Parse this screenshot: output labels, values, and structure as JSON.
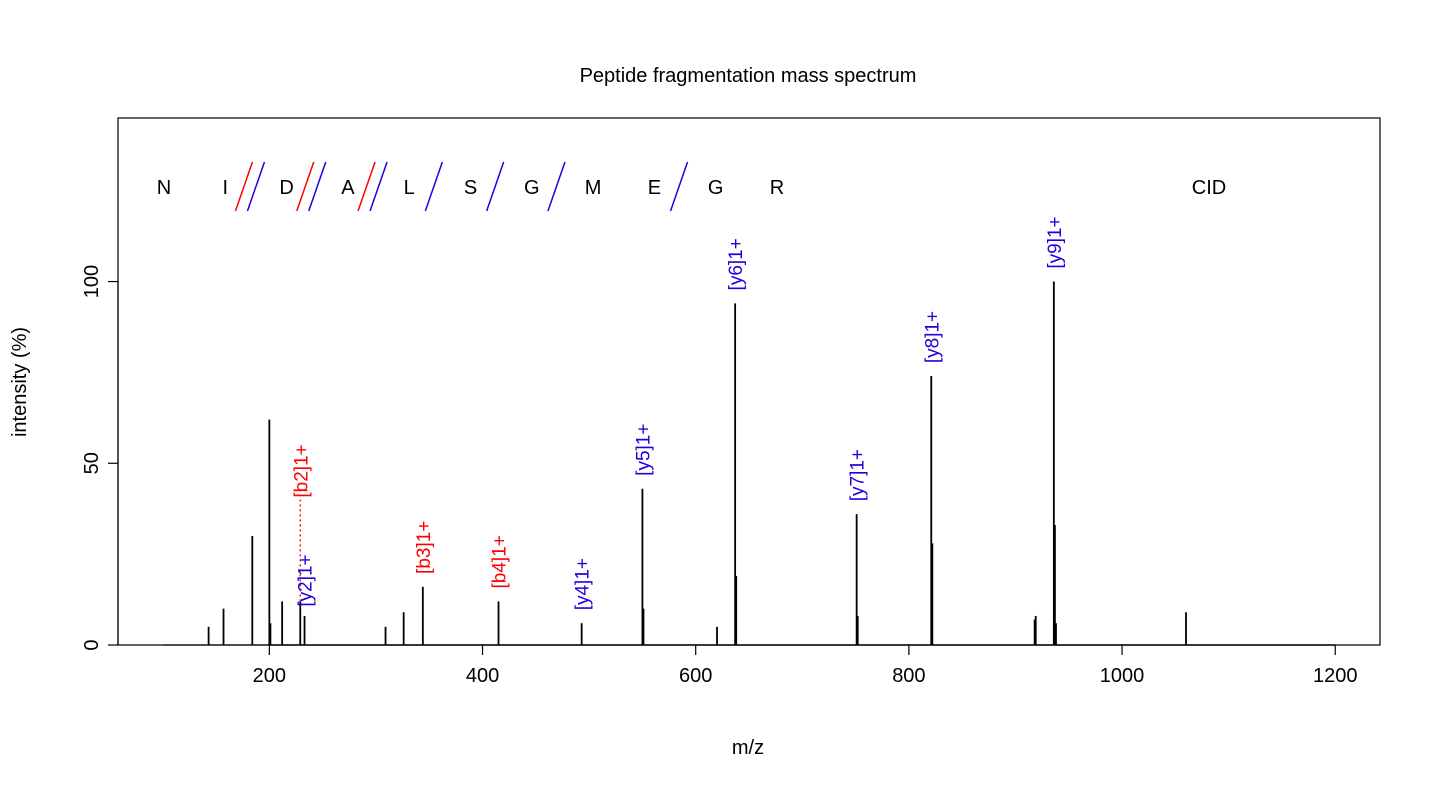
{
  "chart_data": {
    "type": "bar",
    "title": "Peptide fragmentation mass spectrum",
    "xlabel": "m/z",
    "ylabel": "intensity (%)",
    "xlim": [
      58,
      1242
    ],
    "ylim": [
      0,
      145
    ],
    "xticks": [
      200,
      400,
      600,
      800,
      1000,
      1200
    ],
    "yticks": [
      0,
      50,
      100
    ],
    "grid": false,
    "legend": "none",
    "method_label": "CID",
    "sequence": [
      "N",
      "I",
      "D",
      "A",
      "L",
      "S",
      "G",
      "M",
      "E",
      "G",
      "R"
    ],
    "cleavages": [
      {
        "after_residue": 2,
        "b": true,
        "y": true
      },
      {
        "after_residue": 3,
        "b": true,
        "y": true
      },
      {
        "after_residue": 4,
        "b": true,
        "y": true
      },
      {
        "after_residue": 5,
        "b": false,
        "y": true
      },
      {
        "after_residue": 6,
        "b": false,
        "y": true
      },
      {
        "after_residue": 7,
        "b": false,
        "y": true
      },
      {
        "after_residue": 9,
        "b": false,
        "y": true
      }
    ],
    "colors": {
      "b_ion": "#ff0000",
      "y_ion": "#2200dd",
      "peak": "#000000"
    },
    "peaks": [
      {
        "mz": 143,
        "intensity": 5
      },
      {
        "mz": 157,
        "intensity": 10
      },
      {
        "mz": 184,
        "intensity": 30
      },
      {
        "mz": 200,
        "intensity": 62
      },
      {
        "mz": 201,
        "intensity": 6
      },
      {
        "mz": 212,
        "intensity": 12
      },
      {
        "mz": 229,
        "intensity": 12
      },
      {
        "mz": 233,
        "intensity": 8
      },
      {
        "mz": 309,
        "intensity": 5
      },
      {
        "mz": 326,
        "intensity": 9
      },
      {
        "mz": 344,
        "intensity": 16
      },
      {
        "mz": 415,
        "intensity": 12
      },
      {
        "mz": 493,
        "intensity": 6
      },
      {
        "mz": 550,
        "intensity": 43
      },
      {
        "mz": 551,
        "intensity": 10
      },
      {
        "mz": 620,
        "intensity": 5
      },
      {
        "mz": 637,
        "intensity": 94
      },
      {
        "mz": 638,
        "intensity": 19
      },
      {
        "mz": 751,
        "intensity": 36
      },
      {
        "mz": 752,
        "intensity": 8
      },
      {
        "mz": 821,
        "intensity": 74
      },
      {
        "mz": 822,
        "intensity": 28
      },
      {
        "mz": 918,
        "intensity": 7
      },
      {
        "mz": 919,
        "intensity": 8
      },
      {
        "mz": 936,
        "intensity": 100
      },
      {
        "mz": 937,
        "intensity": 33
      },
      {
        "mz": 938,
        "intensity": 6
      },
      {
        "mz": 1060,
        "intensity": 9
      }
    ],
    "annotations": [
      {
        "label": "[b2]1+",
        "ion": "b",
        "mz": 229,
        "intensity": 12,
        "label_at": 40,
        "dotted": true
      },
      {
        "label": "[y2]1+",
        "ion": "y",
        "mz": 233,
        "intensity": 8,
        "label_at": 10,
        "dotted": false
      },
      {
        "label": "[b3]1+",
        "ion": "b",
        "mz": 344,
        "intensity": 16,
        "label_at": 19,
        "dotted": false
      },
      {
        "label": "[b4]1+",
        "ion": "b",
        "mz": 415,
        "intensity": 12,
        "label_at": 15,
        "dotted": false
      },
      {
        "label": "[y4]1+",
        "ion": "y",
        "mz": 493,
        "intensity": 6,
        "label_at": 9,
        "dotted": false
      },
      {
        "label": "[y5]1+",
        "ion": "y",
        "mz": 550,
        "intensity": 43,
        "label_at": 46,
        "dotted": false
      },
      {
        "label": "[y6]1+",
        "ion": "y",
        "mz": 637,
        "intensity": 94,
        "label_at": 97,
        "dotted": false
      },
      {
        "label": "[y7]1+",
        "ion": "y",
        "mz": 751,
        "intensity": 36,
        "label_at": 39,
        "dotted": false
      },
      {
        "label": "[y8]1+",
        "ion": "y",
        "mz": 821,
        "intensity": 74,
        "label_at": 77,
        "dotted": false
      },
      {
        "label": "[y9]1+",
        "ion": "y",
        "mz": 936,
        "intensity": 100,
        "label_at": 103,
        "dotted": false
      }
    ]
  }
}
